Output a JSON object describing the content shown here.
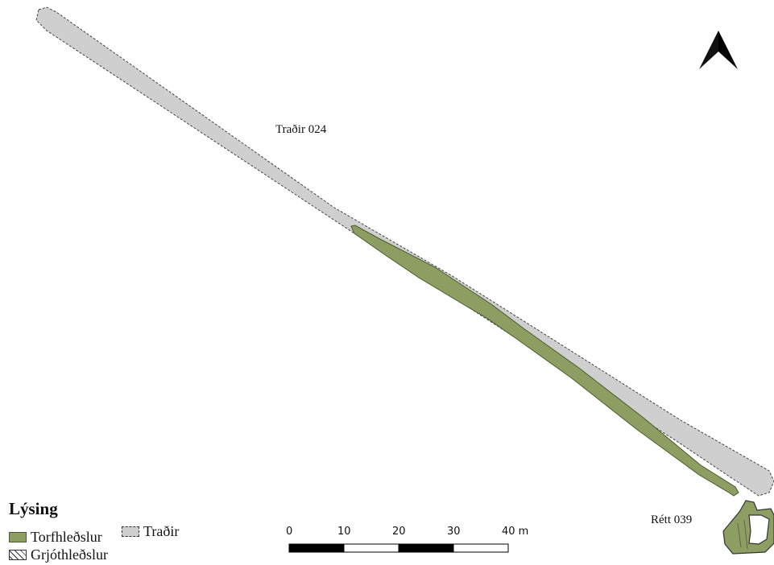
{
  "map": {
    "feature_labels": {
      "tradir": "Traðir 024",
      "rett": "Rétt 039"
    },
    "north_arrow_icon": "north-arrow-icon",
    "colors": {
      "tradir_fill": "#cfcfcf",
      "tradir_outline": "#444444",
      "turf_fill": "#8e9e62",
      "turf_outline": "#4a5a2a"
    }
  },
  "legend": {
    "title": "Lýsing",
    "items": [
      {
        "label": "Torfhleðslur",
        "swatch": "turf"
      },
      {
        "label": "Traðir",
        "swatch": "tradir"
      },
      {
        "label": "Grjóthleðslur",
        "swatch": "stone-hatch"
      }
    ]
  },
  "scale_bar": {
    "ticks": [
      "0",
      "10",
      "20",
      "30",
      "40 m"
    ],
    "unit": "m"
  }
}
